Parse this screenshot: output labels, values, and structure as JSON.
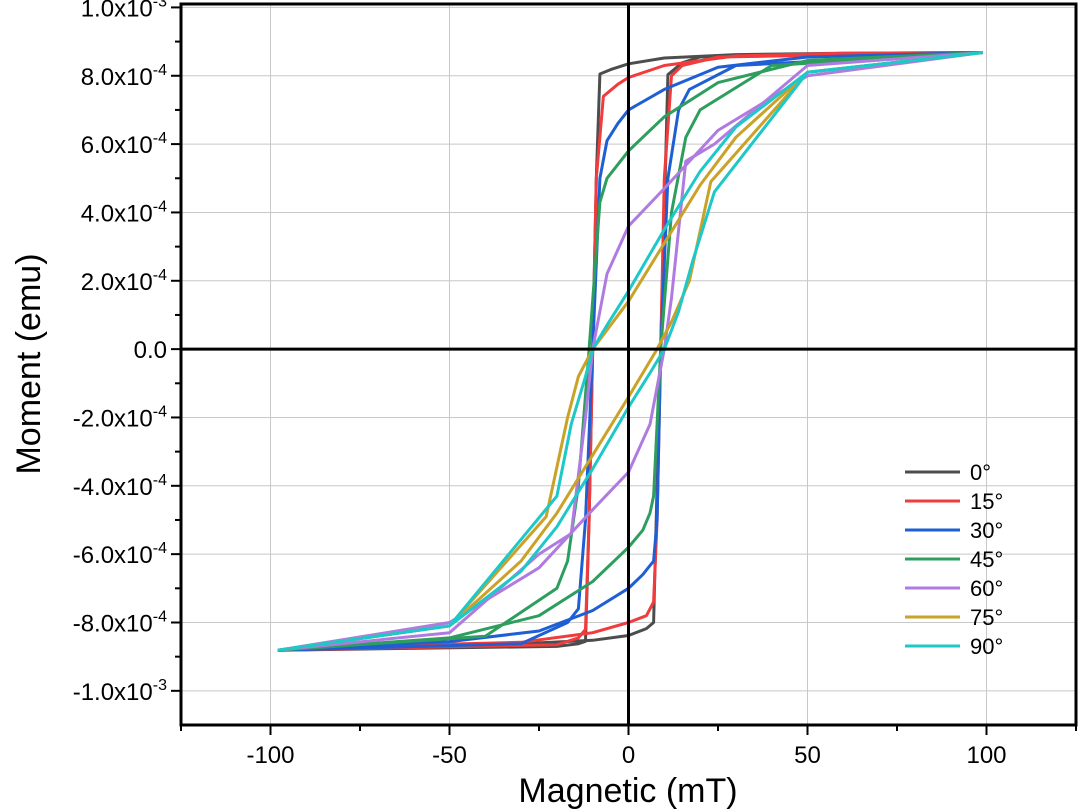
{
  "chart_data": {
    "type": "line",
    "xlabel": "Magnetic (mT)",
    "ylabel": "Moment (emu)",
    "xlim": [
      -125,
      125
    ],
    "ylim": [
      -0.0011,
      0.00101
    ],
    "grid": true,
    "legend_position": "bottom-right",
    "x_ticks": [
      {
        "value": -100,
        "label": "-100"
      },
      {
        "value": -50,
        "label": "-50"
      },
      {
        "value": 0,
        "label": "0"
      },
      {
        "value": 50,
        "label": "50"
      },
      {
        "value": 100,
        "label": "100"
      }
    ],
    "y_ticks": [
      {
        "value": 0.001,
        "mant": "1.0x10",
        "exp": "-3"
      },
      {
        "value": 0.0008,
        "mant": "8.0x10",
        "exp": "-4"
      },
      {
        "value": 0.0006,
        "mant": "6.0x10",
        "exp": "-4"
      },
      {
        "value": 0.0004,
        "mant": "4.0x10",
        "exp": "-4"
      },
      {
        "value": 0.0002,
        "mant": "2.0x10",
        "exp": "-4"
      },
      {
        "value": 0,
        "mant": "0.0",
        "exp": ""
      },
      {
        "value": -0.0002,
        "mant": "-2.0x10",
        "exp": "-4"
      },
      {
        "value": -0.0004,
        "mant": "-4.0x10",
        "exp": "-4"
      },
      {
        "value": -0.0006,
        "mant": "-6.0x10",
        "exp": "-4"
      },
      {
        "value": -0.0008,
        "mant": "-8.0x10",
        "exp": "-4"
      },
      {
        "value": -0.001,
        "mant": "-1.0x10",
        "exp": "-3"
      }
    ],
    "series": [
      {
        "name": "0°",
        "color": "#4d4d4d",
        "upper": [
          [
            -98,
            -0.000881
          ],
          [
            -20,
            -0.00087
          ],
          [
            -14,
            -0.000862
          ],
          [
            -12,
            -0.000855
          ],
          [
            -11,
            -0.0005
          ],
          [
            -10,
            0.0
          ],
          [
            -9,
            0.0005
          ],
          [
            -8,
            0.000805
          ],
          [
            -5,
            0.000818
          ],
          [
            0,
            0.000835
          ],
          [
            10,
            0.000852
          ],
          [
            30,
            0.000862
          ],
          [
            60,
            0.000866
          ],
          [
            99,
            0.000868
          ]
        ],
        "lower": [
          [
            -98,
            -0.000881
          ],
          [
            -60,
            -0.000866
          ],
          [
            -30,
            -0.000862
          ],
          [
            -10,
            -0.000852
          ],
          [
            0,
            -0.000838
          ],
          [
            5,
            -0.000818
          ],
          [
            7,
            -0.0008
          ],
          [
            8,
            -0.0004
          ],
          [
            9,
            0.0
          ],
          [
            10,
            0.0004
          ],
          [
            11,
            0.000803
          ],
          [
            15,
            0.000838
          ],
          [
            20,
            0.000855
          ],
          [
            99,
            0.000868
          ]
        ]
      },
      {
        "name": "15°",
        "color": "#f03c3c",
        "upper": [
          [
            -98,
            -0.000881
          ],
          [
            -20,
            -0.000865
          ],
          [
            -14,
            -0.000845
          ],
          [
            -12,
            -0.00082
          ],
          [
            -11,
            -0.0005
          ],
          [
            -10,
            0.0
          ],
          [
            -9,
            0.0005
          ],
          [
            -7,
            0.00074
          ],
          [
            -3,
            0.000775
          ],
          [
            0,
            0.000795
          ],
          [
            10,
            0.00083
          ],
          [
            30,
            0.000858
          ],
          [
            60,
            0.000866
          ],
          [
            99,
            0.000868
          ]
        ],
        "lower": [
          [
            -98,
            -0.000881
          ],
          [
            -60,
            -0.000866
          ],
          [
            -30,
            -0.000858
          ],
          [
            -10,
            -0.00083
          ],
          [
            0,
            -0.0008
          ],
          [
            5,
            -0.00078
          ],
          [
            7,
            -0.00074
          ],
          [
            8,
            -0.0005
          ],
          [
            9,
            0.0
          ],
          [
            10,
            0.0005
          ],
          [
            12,
            0.0008
          ],
          [
            15,
            0.00083
          ],
          [
            25,
            0.000855
          ],
          [
            99,
            0.000868
          ]
        ]
      },
      {
        "name": "30°",
        "color": "#1f5fd4",
        "upper": [
          [
            -98,
            -0.000881
          ],
          [
            -30,
            -0.000862
          ],
          [
            -17,
            -0.0008
          ],
          [
            -14,
            -0.00076
          ],
          [
            -12,
            -0.0005
          ],
          [
            -10,
            0.0
          ],
          [
            -8,
            0.0005
          ],
          [
            -6,
            0.00061
          ],
          [
            -3,
            0.00066
          ],
          [
            0,
            0.0007
          ],
          [
            10,
            0.00076
          ],
          [
            25,
            0.000825
          ],
          [
            50,
            0.000855
          ],
          [
            99,
            0.000868
          ]
        ],
        "lower": [
          [
            -98,
            -0.000881
          ],
          [
            -50,
            -0.000856
          ],
          [
            -25,
            -0.000825
          ],
          [
            -10,
            -0.000765
          ],
          [
            0,
            -0.0007
          ],
          [
            4,
            -0.00066
          ],
          [
            7,
            -0.00062
          ],
          [
            8,
            -0.0005
          ],
          [
            9,
            0.0
          ],
          [
            11,
            0.0005
          ],
          [
            14,
            0.0007
          ],
          [
            17,
            0.00076
          ],
          [
            30,
            0.00083
          ],
          [
            99,
            0.000868
          ]
        ]
      },
      {
        "name": "45°",
        "color": "#2e9e5f",
        "upper": [
          [
            -98,
            -0.000881
          ],
          [
            -40,
            -0.00084
          ],
          [
            -20,
            -0.0007
          ],
          [
            -17,
            -0.00062
          ],
          [
            -14,
            -0.0004
          ],
          [
            -11,
            0.0
          ],
          [
            -8,
            0.00043
          ],
          [
            -6,
            0.0005
          ],
          [
            -3,
            0.00054
          ],
          [
            0,
            0.00058
          ],
          [
            10,
            0.00068
          ],
          [
            25,
            0.00078
          ],
          [
            50,
            0.000845
          ],
          [
            99,
            0.000868
          ]
        ],
        "lower": [
          [
            -98,
            -0.000881
          ],
          [
            -50,
            -0.000845
          ],
          [
            -25,
            -0.00078
          ],
          [
            -10,
            -0.00068
          ],
          [
            0,
            -0.00058
          ],
          [
            4,
            -0.00053
          ],
          [
            6,
            -0.00048
          ],
          [
            7,
            -0.00043
          ],
          [
            9,
            0.0
          ],
          [
            12,
            0.0004
          ],
          [
            16,
            0.00062
          ],
          [
            20,
            0.0007
          ],
          [
            40,
            0.00083
          ],
          [
            99,
            0.000868
          ]
        ]
      },
      {
        "name": "60°",
        "color": "#b07be0",
        "upper": [
          [
            -98,
            -0.000881
          ],
          [
            -50,
            -0.00083
          ],
          [
            -25,
            -0.0006
          ],
          [
            -16,
            -0.00054
          ],
          [
            -12,
            -0.0002
          ],
          [
            -10,
            0.0
          ],
          [
            -6,
            0.00022
          ],
          [
            0,
            0.00036
          ],
          [
            10,
            0.00047
          ],
          [
            25,
            0.00064
          ],
          [
            50,
            0.0008
          ],
          [
            99,
            0.000868
          ]
        ],
        "lower": [
          [
            -98,
            -0.000881
          ],
          [
            -50,
            -0.0008
          ],
          [
            -25,
            -0.00064
          ],
          [
            -10,
            -0.00047
          ],
          [
            0,
            -0.00036
          ],
          [
            6,
            -0.00022
          ],
          [
            10,
            0.0
          ],
          [
            12,
            0.00015
          ],
          [
            16,
            0.00055
          ],
          [
            24,
            0.0006
          ],
          [
            50,
            0.00083
          ],
          [
            99,
            0.000868
          ]
        ]
      },
      {
        "name": "75°",
        "color": "#c9a227",
        "upper": [
          [
            -98,
            -0.000881
          ],
          [
            -50,
            -0.00081
          ],
          [
            -23,
            -0.00049
          ],
          [
            -17,
            -0.0002
          ],
          [
            -14,
            -8e-05
          ],
          [
            -10,
            0.0
          ],
          [
            0,
            0.00014
          ],
          [
            10,
            0.00031
          ],
          [
            20,
            0.00048
          ],
          [
            30,
            0.00062
          ],
          [
            50,
            0.00081
          ],
          [
            99,
            0.000868
          ]
        ],
        "lower": [
          [
            -98,
            -0.000881
          ],
          [
            -50,
            -0.00081
          ],
          [
            -30,
            -0.00062
          ],
          [
            -20,
            -0.00048
          ],
          [
            -10,
            -0.00031
          ],
          [
            0,
            -0.00014
          ],
          [
            8,
            0.0
          ],
          [
            12,
            8e-05
          ],
          [
            17,
            0.0002
          ],
          [
            23,
            0.00049
          ],
          [
            50,
            0.00081
          ],
          [
            99,
            0.000868
          ]
        ]
      },
      {
        "name": "90°",
        "color": "#1fc8c8",
        "upper": [
          [
            -98,
            -0.000881
          ],
          [
            -50,
            -0.00081
          ],
          [
            -20,
            -0.00043
          ],
          [
            -16,
            -0.00022
          ],
          [
            -12,
            -8e-05
          ],
          [
            -10,
            0.0
          ],
          [
            -6,
            7e-05
          ],
          [
            0,
            0.00017
          ],
          [
            10,
            0.00035
          ],
          [
            20,
            0.00052
          ],
          [
            30,
            0.00065
          ],
          [
            50,
            0.00081
          ],
          [
            99,
            0.000868
          ]
        ],
        "lower": [
          [
            -98,
            -0.000881
          ],
          [
            -50,
            -0.00081
          ],
          [
            -30,
            -0.00065
          ],
          [
            -20,
            -0.00052
          ],
          [
            -10,
            -0.00035
          ],
          [
            0,
            -0.00017
          ],
          [
            6,
            -7e-05
          ],
          [
            10,
            0.0
          ],
          [
            14,
            0.00011
          ],
          [
            18,
            0.00026
          ],
          [
            24,
            0.00046
          ],
          [
            50,
            0.00081
          ],
          [
            99,
            0.000868
          ]
        ]
      }
    ]
  }
}
